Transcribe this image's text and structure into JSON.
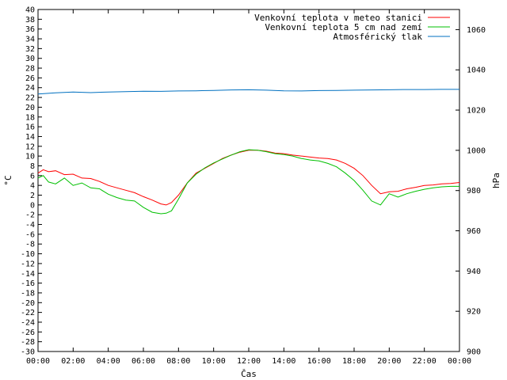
{
  "chart_data": {
    "type": "line",
    "title": "",
    "xlabel": "Čas",
    "ylabel_left": "°C",
    "ylabel_right": "hPa",
    "x_ticks": [
      "00:00",
      "02:00",
      "04:00",
      "06:00",
      "08:00",
      "10:00",
      "12:00",
      "14:00",
      "16:00",
      "18:00",
      "20:00",
      "22:00",
      "00:00"
    ],
    "x_range_hours": [
      0,
      24
    ],
    "y_left_range": [
      -30,
      40
    ],
    "y_left_step": 2,
    "y_right_range": [
      900,
      1070
    ],
    "y_right_ticks": [
      900,
      920,
      940,
      960,
      980,
      1000,
      1020,
      1040,
      1060
    ],
    "grid": false,
    "legend_position": "top-right",
    "series": [
      {
        "name": "Venkovní teplota v meteo stanici",
        "color": "#ff0000",
        "axis": "left",
        "x": [
          0,
          0.3,
          0.6,
          1,
          1.5,
          2,
          2.5,
          3,
          3.5,
          4,
          4.5,
          5,
          5.5,
          6,
          6.5,
          7,
          7.3,
          7.6,
          8,
          8.5,
          9,
          9.5,
          10,
          10.5,
          11,
          11.5,
          12,
          12.5,
          13,
          13.5,
          14,
          14.5,
          15,
          15.5,
          16,
          16.5,
          17,
          17.5,
          18,
          18.5,
          19,
          19.5,
          20,
          20.5,
          21,
          21.5,
          22,
          22.5,
          23,
          23.5,
          24
        ],
        "values": [
          6.5,
          7.2,
          6.8,
          7,
          6.2,
          6.3,
          5.5,
          5.4,
          4.8,
          4,
          3.5,
          3,
          2.5,
          1.7,
          1,
          0.2,
          0,
          0.5,
          2,
          4.5,
          6.5,
          7.5,
          8.5,
          9.5,
          10.2,
          10.8,
          11.2,
          11.2,
          11,
          10.6,
          10.5,
          10.2,
          10,
          9.8,
          9.6,
          9.5,
          9.2,
          8.5,
          7.5,
          6,
          4,
          2.3,
          2.7,
          2.8,
          3.3,
          3.6,
          4,
          4.1,
          4.3,
          4.4,
          4.6
        ]
      },
      {
        "name": "Venkovní teplota 5 cm nad zemí",
        "color": "#00c000",
        "axis": "left",
        "x": [
          0,
          0.3,
          0.6,
          1,
          1.5,
          2,
          2.5,
          3,
          3.5,
          4,
          4.5,
          5,
          5.5,
          6,
          6.5,
          7,
          7.3,
          7.6,
          8,
          8.5,
          9,
          9.5,
          10,
          10.5,
          11,
          11.5,
          12,
          12.5,
          13,
          13.5,
          14,
          14.5,
          15,
          15.5,
          16,
          16.5,
          17,
          17.5,
          18,
          18.5,
          19,
          19.5,
          20,
          20.5,
          21,
          21.5,
          22,
          22.5,
          23,
          23.5,
          24
        ],
        "values": [
          5.5,
          6,
          4.7,
          4.3,
          5.5,
          4,
          4.5,
          3.5,
          3.3,
          2.2,
          1.5,
          1,
          0.8,
          -0.5,
          -1.5,
          -1.8,
          -1.7,
          -1.2,
          1.2,
          4.5,
          6.3,
          7.6,
          8.6,
          9.4,
          10.2,
          10.9,
          11.3,
          11.2,
          10.9,
          10.5,
          10.3,
          10,
          9.5,
          9.2,
          9,
          8.5,
          7.8,
          6.5,
          5,
          3,
          0.8,
          0,
          2.3,
          1.6,
          2.3,
          2.8,
          3.2,
          3.5,
          3.7,
          3.8,
          3.8
        ]
      },
      {
        "name": "Atmosférický tlak",
        "color": "#0070c0",
        "axis": "right",
        "x": [
          0,
          1,
          2,
          3,
          4,
          5,
          6,
          7,
          8,
          9,
          10,
          11,
          12,
          13,
          14,
          15,
          16,
          17,
          18,
          19,
          20,
          21,
          22,
          23,
          24
        ],
        "values": [
          1028,
          1028.6,
          1029,
          1028.7,
          1029,
          1029.2,
          1029.4,
          1029.3,
          1029.5,
          1029.6,
          1029.8,
          1030,
          1030.1,
          1029.9,
          1029.6,
          1029.5,
          1029.7,
          1029.8,
          1029.9,
          1030,
          1030.1,
          1030.2,
          1030.2,
          1030.3,
          1030.3
        ]
      }
    ]
  }
}
